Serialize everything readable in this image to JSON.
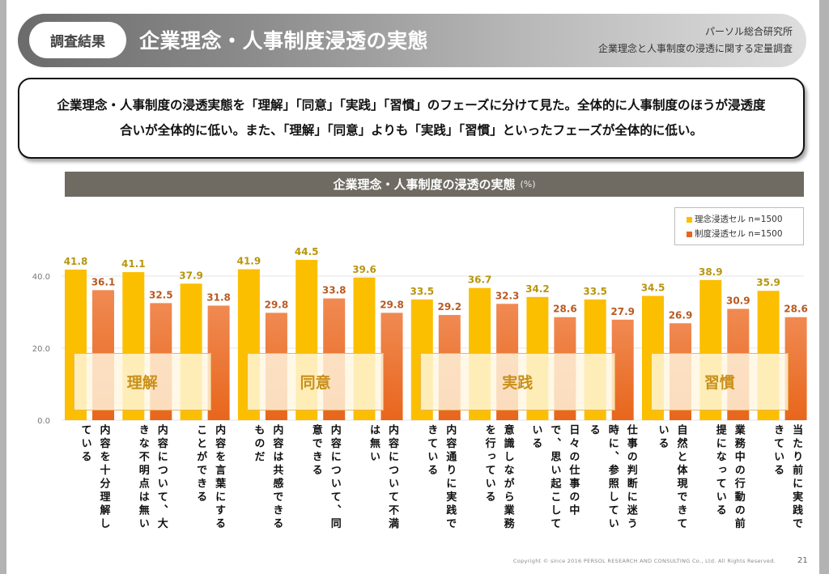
{
  "header": {
    "badge": "調査結果",
    "title": "企業理念・人事制度浸透の実態",
    "org": "パーソル総合研究所",
    "survey": "企業理念と人事制度の浸透に関する定量調査"
  },
  "summary": {
    "line1": "企業理念・人事制度の浸透実態を「理解」「同意」「実践」「習慣」のフェーズに分けて見た。全体的に人事制度のほうが浸透度",
    "line2": "合いが全体的に低い。また、「理解」「同意」よりも「実践」「習慣」といったフェーズが全体的に低い。"
  },
  "colors": {
    "series1": "#fbbf00",
    "series2_top": "#f08a52",
    "series2_bottom": "#e8661c",
    "label1": "#b8960e",
    "label2": "#b85a22",
    "title_bar": "#6f6b63"
  },
  "chart_data": {
    "type": "bar",
    "title": "企業理念・人事制度の浸透の実態",
    "unit": "(%)",
    "xlabel": "",
    "ylabel": "",
    "ylim": [
      0,
      45
    ],
    "yticks": [
      "0.0",
      "20.0",
      "40.0"
    ],
    "ytick_values": [
      0,
      20,
      40
    ],
    "grid": true,
    "legend_position": "top-right",
    "categories": [
      "内容を十分理解している",
      "内容について、大きな不明点は無い",
      "内容を言葉にすることができる",
      "内容は共感できるものだ",
      "内容について、同意できる",
      "内容について不満は無い",
      "内容通りに実践できている",
      "意識しながら業務を行っている",
      "日々の仕事の中で、思い起こしている",
      "仕事の判断に迷う時に、参照している",
      "自然と体現できている",
      "業務中の行動の前提になっている",
      "当たり前に実践できている"
    ],
    "category_lines": [
      [
        "内容を十分理解し",
        "ている"
      ],
      [
        "内容について、大",
        "きな不明点は無い"
      ],
      [
        "内容を言葉にする",
        "ことができる"
      ],
      [
        "内容は共感できる",
        "ものだ"
      ],
      [
        "内容について、同",
        "意できる"
      ],
      [
        "内容について不満",
        "は無い"
      ],
      [
        "内容通りに実践で",
        "きている"
      ],
      [
        "意識しながら業務",
        "を行っている"
      ],
      [
        "日々の仕事の中",
        "で、思い起こして",
        "いる"
      ],
      [
        "仕事の判断に迷う",
        "時に、参照してい",
        "る"
      ],
      [
        "自然と体現できて",
        "いる"
      ],
      [
        "業務中の行動の前",
        "提になっている"
      ],
      [
        "当たり前に実践で",
        "きている"
      ]
    ],
    "series": [
      {
        "name": "理念浸透セル n=1500",
        "values": [
          41.8,
          41.1,
          37.9,
          41.9,
          44.5,
          39.6,
          33.5,
          36.7,
          34.2,
          33.5,
          34.5,
          38.9,
          35.9
        ]
      },
      {
        "name": "制度浸透セル n=1500",
        "values": [
          36.1,
          32.5,
          31.8,
          29.8,
          33.8,
          29.8,
          29.2,
          32.3,
          28.6,
          27.9,
          26.9,
          30.9,
          28.6
        ]
      }
    ],
    "phases": [
      {
        "label": "理解",
        "from": 0,
        "to": 2
      },
      {
        "label": "同意",
        "from": 3,
        "to": 5
      },
      {
        "label": "実践",
        "from": 6,
        "to": 9
      },
      {
        "label": "習慣",
        "from": 10,
        "to": 12
      }
    ]
  },
  "footer": {
    "copyright": "Copyright © since 2016  PERSOL  RESEARCH AND CONSULTING Co., Ltd. All Rights Reserved.",
    "page": "21"
  }
}
